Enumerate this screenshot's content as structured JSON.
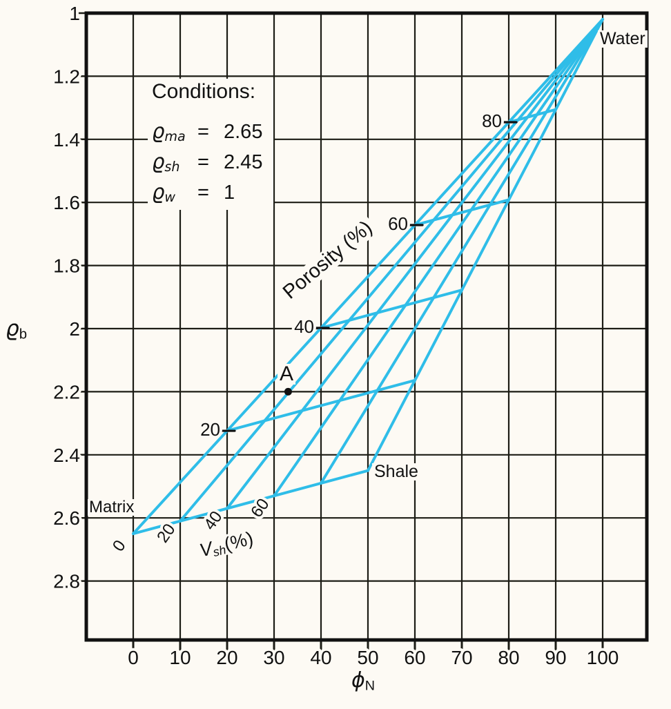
{
  "chart_data": {
    "type": "line",
    "subtype": "density-neutron-shaly-sand-crossplot",
    "title": "",
    "x_axis": {
      "label_symbol": "ϕ",
      "label_subscript": "N",
      "tick_labels": [
        "0",
        "10",
        "20",
        "30",
        "40",
        "50",
        "60",
        "70",
        "80",
        "90",
        "100"
      ],
      "range": [
        0,
        100
      ],
      "grid": true
    },
    "y_axis": {
      "label_symbol": "ϱ",
      "label_subscript": "b",
      "tick_labels": [
        "1",
        "1.2",
        "1.4",
        "1.6",
        "1.8",
        "2",
        "2.2",
        "2.4",
        "2.6",
        "2.8"
      ],
      "range": [
        1,
        2.8
      ],
      "orientation": "inverted, 1 at top",
      "grid": true
    },
    "conditions": {
      "title": "Conditions:",
      "rows": [
        {
          "symbol": "ϱ",
          "subscript": "ma",
          "eq": "=",
          "value": "2.65"
        },
        {
          "symbol": "ϱ",
          "subscript": "sh",
          "eq": "=",
          "value": "2.45"
        },
        {
          "symbol": "ϱ",
          "subscript": "w",
          "eq": "=",
          "value": "1"
        }
      ]
    },
    "end_points": {
      "matrix": {
        "label": "Matrix",
        "phi_n": 0,
        "rho_b": 2.65
      },
      "shale": {
        "label": "Shale",
        "phi_n": 50,
        "rho_b": 2.45
      },
      "water": {
        "label": "Water",
        "phi_n": 100,
        "rho_b": 1
      }
    },
    "vsh_fan": {
      "axis_label_symbol": "V",
      "axis_label_subscript": "sh",
      "axis_label_suffix": "(%)",
      "line_values": [
        0,
        20,
        40,
        60,
        80,
        100
      ],
      "tick_labels": [
        "0",
        "20",
        "40",
        "60"
      ],
      "description": "Lines of constant shale volume fan out from the Matrix–Shale base line and converge at the Water point"
    },
    "porosity_lines": {
      "axis_label": "Porosity (%)",
      "line_values": [
        20,
        40,
        60,
        80
      ],
      "tick_labels": [
        "20",
        "40",
        "60",
        "80"
      ],
      "description": "Iso-porosity lines run from the clean-sand (Vsh=0) line to the Shale–Water line"
    },
    "marked_point": {
      "label": "A",
      "phi_n": 33,
      "rho_b": 2.2
    },
    "colors": {
      "mesh": "#2fbde8",
      "grid": "#1c1c15",
      "border": "#111111",
      "text": "#111111",
      "paper": "#fdfaf4"
    }
  }
}
